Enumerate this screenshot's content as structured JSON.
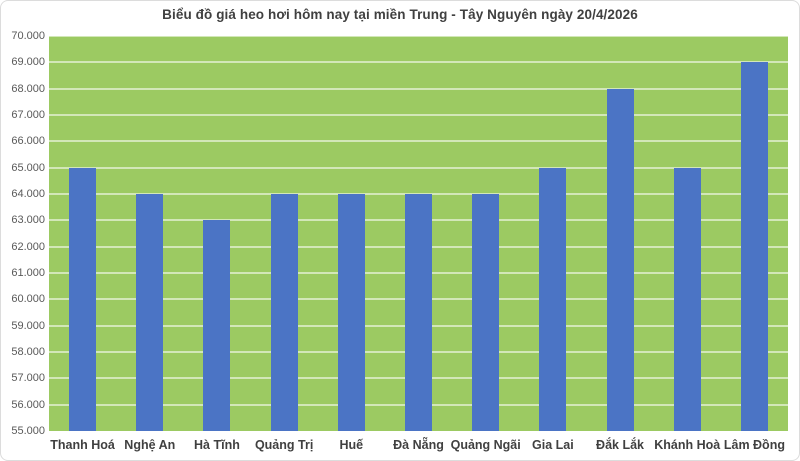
{
  "chart_data": {
    "type": "bar",
    "title": "Biểu đồ giá heo hơi hôm nay tại miền Trung - Tây Nguyên ngày 20/4/2026",
    "categories": [
      "Thanh Hoá",
      "Nghệ An",
      "Hà Tĩnh",
      "Quảng Trị",
      "Huế",
      "Đà Nẵng",
      "Quảng Ngãi",
      "Gia Lai",
      "Đắk Lắk",
      "Khánh Hoà",
      "Lâm Đồng"
    ],
    "values": [
      65000,
      64000,
      63000,
      64000,
      64000,
      64000,
      64000,
      65000,
      68000,
      65000,
      69000
    ],
    "xlabel": "",
    "ylabel": "",
    "ylim": [
      55000,
      70000
    ],
    "ytick_step": 1000,
    "ytick_labels": [
      "55.000",
      "56.000",
      "57.000",
      "58.000",
      "59.000",
      "60.000",
      "61.000",
      "62.000",
      "63.000",
      "64.000",
      "65.000",
      "66.000",
      "67.000",
      "68.000",
      "69.000",
      "70.000"
    ],
    "grid": true,
    "legend": "none",
    "colors": {
      "bar": "#4B74C5",
      "plot_background": "#9CCA62",
      "gridline": "rgba(255,255,255,0.55)",
      "title_text": "#404040",
      "y_axis_text": "#595959",
      "x_axis_text": "#404040",
      "frame_border": "#DCDCDC",
      "page_background": "#FFFFFF"
    }
  }
}
